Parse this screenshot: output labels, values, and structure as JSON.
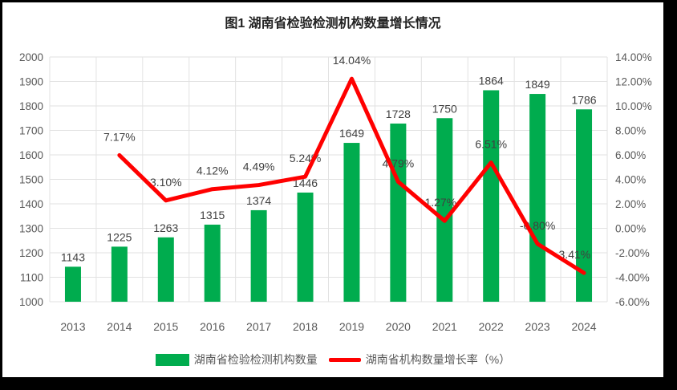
{
  "chart_data": {
    "type": "combo",
    "title": "图1 湖南省检验检测机构数量增长情况",
    "categories": [
      "2013",
      "2014",
      "2015",
      "2016",
      "2017",
      "2018",
      "2019",
      "2020",
      "2021",
      "2022",
      "2023",
      "2024"
    ],
    "series": [
      {
        "name": "湖南省检验检测机构数量",
        "type": "bar",
        "color": "#00AC4E",
        "values": [
          1143,
          1225,
          1263,
          1315,
          1374,
          1446,
          1649,
          1728,
          1750,
          1864,
          1849,
          1786
        ]
      },
      {
        "name": "湖南省机构数量增长率（%）",
        "type": "line",
        "color": "#FF0000",
        "values": [
          null,
          7.17,
          3.1,
          4.12,
          4.49,
          5.24,
          14.04,
          4.79,
          1.27,
          6.51,
          -0.8,
          -3.41
        ],
        "point_labels": [
          "",
          "7.17%",
          "3.10%",
          "4.12%",
          "4.49%",
          "5.24%",
          "14.04%",
          "4.79%",
          "1.27%",
          "6.51%",
          "-0.80%",
          "-3.41%"
        ]
      }
    ],
    "left_axis": {
      "min": 1000,
      "max": 2000,
      "step": 100
    },
    "right_axis": {
      "min": -6,
      "max": 16,
      "step": 2,
      "decimals": 2,
      "suffix": "%"
    },
    "grid": "both",
    "legend_position": "bottom",
    "colors": {
      "gridline": "#E2E2E2",
      "axis_text": "#595959",
      "data_label_text": "#404040"
    }
  }
}
